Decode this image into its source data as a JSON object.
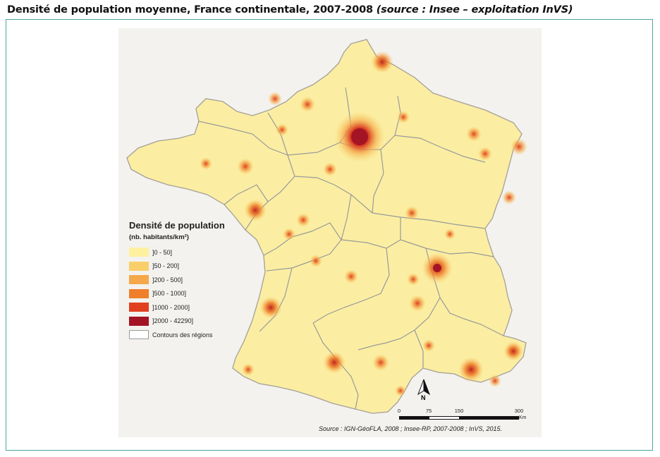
{
  "header": {
    "title": "Densité de population moyenne, France continentale, 2007-2008",
    "source": "(source : Insee – exploitation InVS)"
  },
  "map": {
    "subject": "France continentale",
    "base_color": "#fbeea2",
    "legend": {
      "title": "Densité de population",
      "subtitle": "(nb. habitants/km²)",
      "classes": [
        {
          "label": "]0 - 50]",
          "color": "#fdf0a0"
        },
        {
          "label": "]50 - 200]",
          "color": "#f9cf6a"
        },
        {
          "label": "]200 - 500]",
          "color": "#f5a84a"
        },
        {
          "label": "]500 - 1000]",
          "color": "#ef7f2a"
        },
        {
          "label": "]1000 - 2000]",
          "color": "#e0401f"
        },
        {
          "label": "]2000 - 42290]",
          "color": "#a31525"
        }
      ],
      "outline_label": "Contours des régions",
      "outline_color": "#9a9a9a"
    },
    "scale": {
      "ticks": [
        "0",
        "75",
        "150",
        "300"
      ],
      "unit": "Km"
    },
    "north_label": "N",
    "source_note": "Source : IGN-GéoFLA, 2008 ; Insee-RP, 2007-2008 ; InVS, 2015."
  }
}
